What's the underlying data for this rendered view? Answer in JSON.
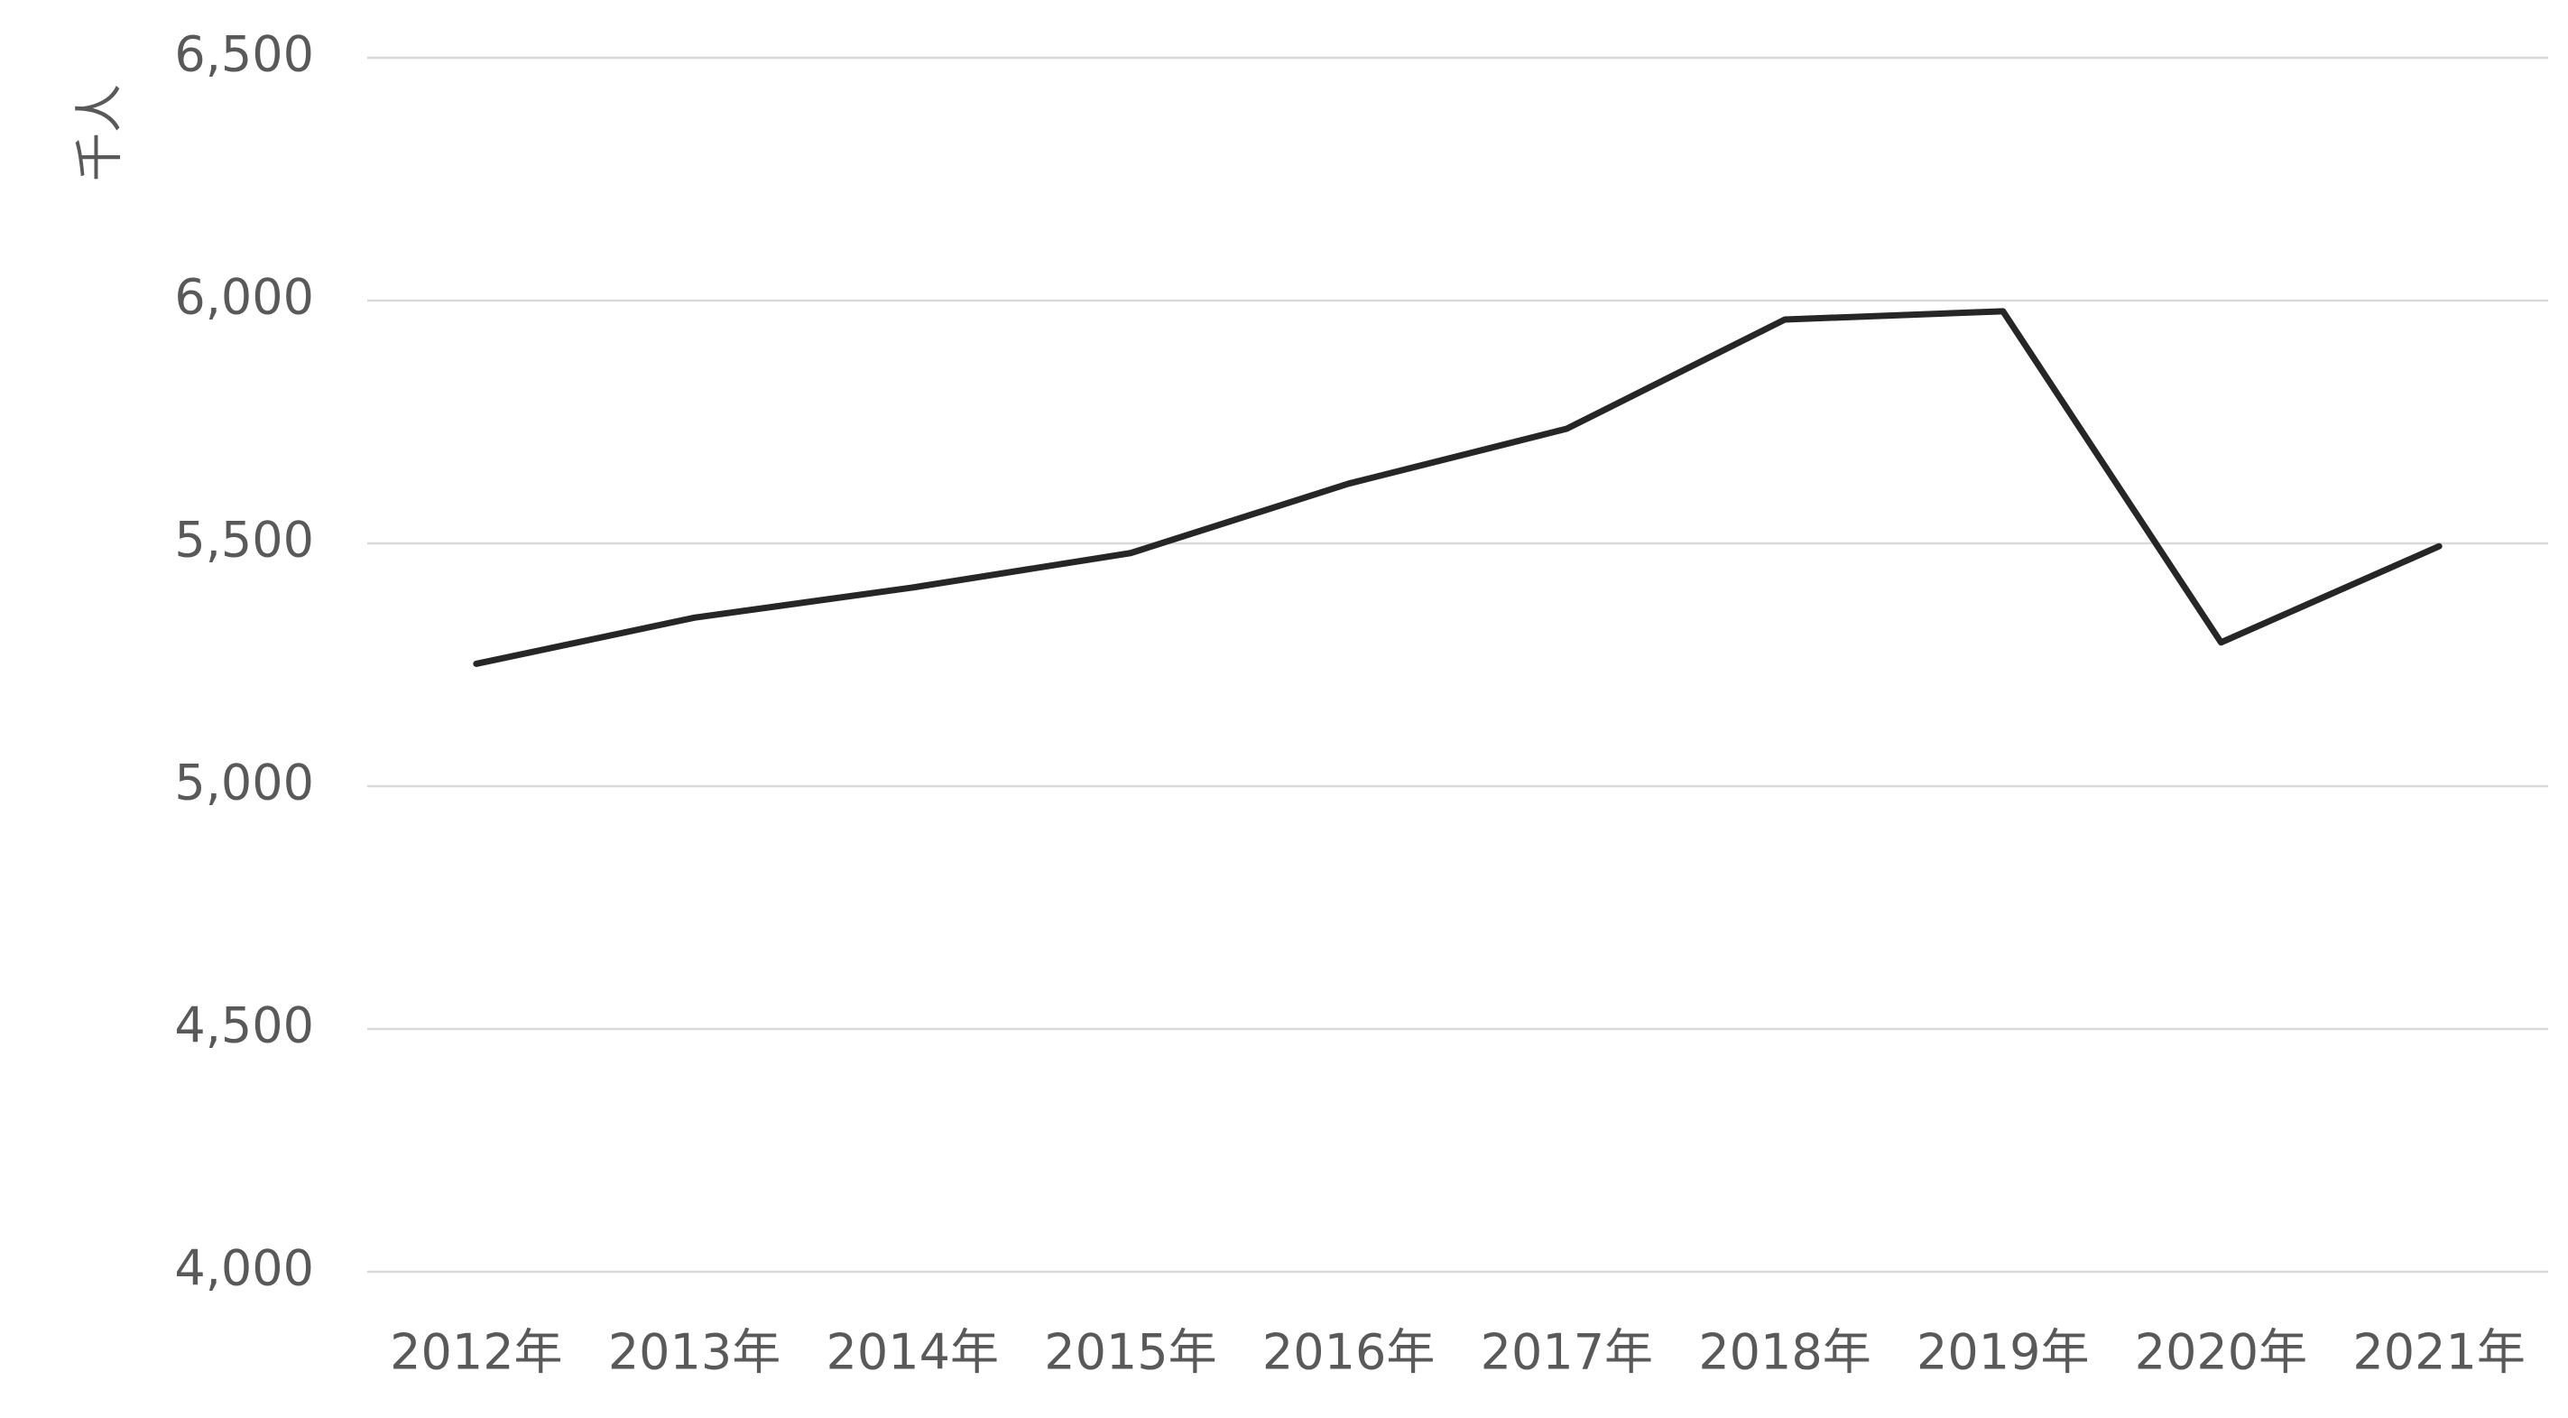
{
  "chart_data": {
    "type": "line",
    "y_label": "千人",
    "categories": [
      "2012年",
      "2013年",
      "2014年",
      "2015年",
      "2016年",
      "2017年",
      "2018年",
      "2019年",
      "2020年",
      "2021年"
    ],
    "series": [
      {
        "color": "#262626",
        "values": [
          5252,
          5347,
          5409,
          5480,
          5623,
          5736,
          5961,
          5978,
          5296,
          5494
        ]
      }
    ],
    "ylim": [
      4000,
      6500
    ],
    "yticks": [
      {
        "value": 4000,
        "label": "4,000"
      },
      {
        "value": 4500,
        "label": "4,500"
      },
      {
        "value": 5000,
        "label": "5,000"
      },
      {
        "value": 5500,
        "label": "5,500"
      },
      {
        "value": 6000,
        "label": "6,000"
      },
      {
        "value": 6500,
        "label": "6,500"
      }
    ],
    "grid": true
  }
}
